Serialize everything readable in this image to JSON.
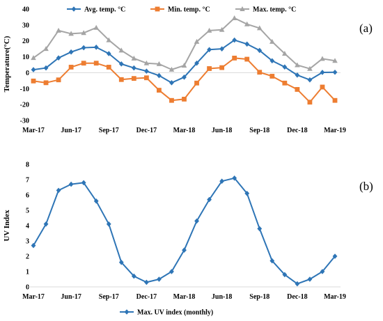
{
  "chart_data": [
    {
      "type": "line",
      "panel_label": "(a)",
      "ylabel": "Temperature(°C)",
      "xlabel": "",
      "ylim": [
        -30,
        40
      ],
      "yticks": [
        -30,
        -20,
        -10,
        0,
        10,
        20,
        30,
        40
      ],
      "x_tick_labels": [
        "Mar-17",
        "Jun-17",
        "Sep-17",
        "Dec-17",
        "Mar-18",
        "Jun-18",
        "Sep-18",
        "Dec-18",
        "Mar-19"
      ],
      "x_tick_months": [
        "2017-03",
        "2017-06",
        "2017-09",
        "2017-12",
        "2018-03",
        "2018-06",
        "2018-09",
        "2018-12",
        "2019-03"
      ],
      "x": [
        "2017-03",
        "2017-04",
        "2017-05",
        "2017-06",
        "2017-07",
        "2017-08",
        "2017-09",
        "2017-10",
        "2017-11",
        "2017-12",
        "2018-01",
        "2018-02",
        "2018-03",
        "2018-04",
        "2018-05",
        "2018-06",
        "2018-07",
        "2018-08",
        "2018-09",
        "2018-10",
        "2018-11",
        "2018-12",
        "2019-01",
        "2019-02",
        "2019-03"
      ],
      "legend_position": "top",
      "grid": false,
      "series": [
        {
          "name": "Avg. temp. °C",
          "color": "#2E75B6",
          "marker": "diamond",
          "values": [
            1.9,
            3,
            9.3,
            13,
            15.7,
            16,
            12,
            5.5,
            3,
            1,
            -1.8,
            -6.3,
            -2.8,
            6,
            14.5,
            15,
            20.5,
            18,
            14,
            7.5,
            3.6,
            -1.5,
            -4.5,
            0.2,
            0.3
          ]
        },
        {
          "name": "Min. temp. °C",
          "color": "#ED7D31",
          "marker": "square",
          "values": [
            -5.2,
            -6.3,
            -4.5,
            3.5,
            6,
            6,
            3.5,
            -4.3,
            -3.6,
            -3.2,
            -11,
            -17.4,
            -16.6,
            -6.5,
            2.6,
            3.2,
            9.2,
            8.5,
            0.3,
            -2.2,
            -6.5,
            -10.5,
            -18.5,
            -9,
            -17.4
          ]
        },
        {
          "name": "Max. temp. °C",
          "color": "#A5A5A5",
          "marker": "triangle",
          "values": [
            9.3,
            15,
            26.5,
            24.5,
            25,
            28.3,
            20.5,
            14,
            9,
            6,
            5.5,
            2,
            4.5,
            19.5,
            26.5,
            27,
            34.3,
            30.5,
            28,
            19.5,
            12,
            4.8,
            2.5,
            8.8,
            7.5
          ]
        }
      ]
    },
    {
      "type": "line",
      "panel_label": "(b)",
      "ylabel": "UV Index",
      "xlabel": "",
      "ylim": [
        0,
        8
      ],
      "yticks": [
        0,
        1,
        2,
        3,
        4,
        5,
        6,
        7,
        8
      ],
      "x_tick_labels": [
        "Mar-17",
        "Jun-17",
        "Sep-17",
        "Dec-17",
        "Mar-18",
        "Jun-18",
        "Sep-18",
        "Dec-18",
        "Mar-19"
      ],
      "x_tick_months": [
        "2017-03",
        "2017-06",
        "2017-09",
        "2017-12",
        "2018-03",
        "2018-06",
        "2018-09",
        "2018-12",
        "2019-03"
      ],
      "x": [
        "2017-03",
        "2017-04",
        "2017-05",
        "2017-06",
        "2017-07",
        "2017-08",
        "2017-09",
        "2017-10",
        "2017-11",
        "2017-12",
        "2018-01",
        "2018-02",
        "2018-03",
        "2018-04",
        "2018-05",
        "2018-06",
        "2018-07",
        "2018-08",
        "2018-09",
        "2018-10",
        "2018-11",
        "2018-12",
        "2019-01",
        "2019-02",
        "2019-03"
      ],
      "legend_position": "bottom",
      "grid": false,
      "series": [
        {
          "name": "Max. UV index (monthly)",
          "color": "#2E75B6",
          "marker": "diamond",
          "values": [
            2.7,
            4.1,
            6.3,
            6.7,
            6.8,
            5.6,
            4.1,
            1.6,
            0.7,
            0.3,
            0.5,
            1,
            2.4,
            4.3,
            5.7,
            6.9,
            7.1,
            6.1,
            3.8,
            1.7,
            0.8,
            0.2,
            0.5,
            1,
            2
          ]
        }
      ]
    }
  ]
}
